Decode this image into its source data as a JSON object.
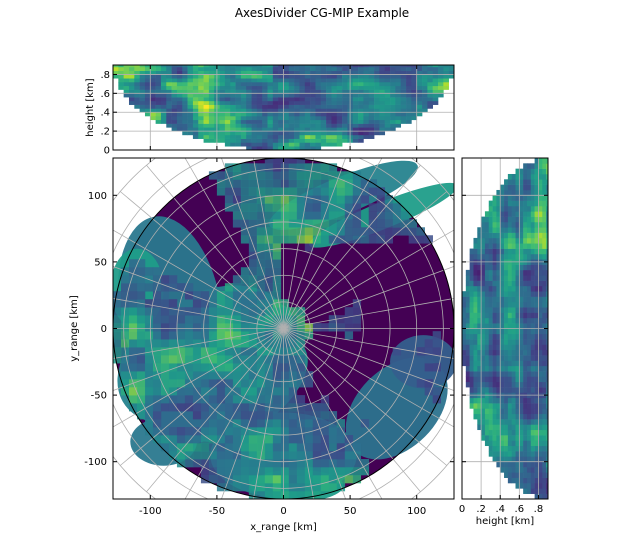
{
  "title": "AxesDivider CG-MIP Example",
  "colors": {
    "grid": "#b0b0b0",
    "axes": "#000000",
    "colormap_low": "#440154",
    "colormap_mid": "#21918c",
    "colormap_high": "#fde725"
  },
  "chart_data": [
    {
      "type": "heatmap",
      "panel": "main",
      "description_kind": "polar radar image (CG-MIP plan view)",
      "xlabel": "x_range [km]",
      "ylabel": "y_range [km]",
      "xlim": [
        -128,
        128
      ],
      "ylim": [
        -128,
        128
      ],
      "xticks": [
        -100,
        -50,
        0,
        50,
        100
      ],
      "xtick_labels": [
        "-100",
        "-50",
        "0",
        "50",
        "100"
      ],
      "yticks": [
        -100,
        -50,
        0,
        50,
        100
      ],
      "ytick_labels": [
        "-100",
        "-50",
        "0",
        "50",
        "100"
      ],
      "data_radius_km": 128,
      "polar_grid": {
        "ring_spacing_km": 20,
        "ring_max_km": 160,
        "spoke_step_deg": 10
      },
      "colormap": "viridis",
      "grid": true
    },
    {
      "type": "heatmap",
      "panel": "top",
      "description_kind": "CG-MIP side view (x_range vs height)",
      "xlabel": "",
      "ylabel": "height [km]",
      "xlim": [
        -128,
        128
      ],
      "ylim": [
        0,
        0.9
      ],
      "yticks": [
        0,
        0.2,
        0.4,
        0.6,
        0.8
      ],
      "ytick_labels": [
        "0",
        ".2",
        ".4",
        ".6",
        ".8"
      ],
      "colormap": "viridis",
      "grid": true
    },
    {
      "type": "heatmap",
      "panel": "right",
      "description_kind": "CG-MIP side view (height vs y_range)",
      "xlabel": "height [km]",
      "ylabel": "",
      "xlim": [
        0,
        0.9
      ],
      "ylim": [
        -128,
        128
      ],
      "xticks": [
        0,
        0.2,
        0.4,
        0.6,
        0.8
      ],
      "xtick_labels": [
        "0",
        ".2",
        ".4",
        ".6",
        ".8"
      ],
      "colormap": "viridis",
      "grid": true
    }
  ]
}
